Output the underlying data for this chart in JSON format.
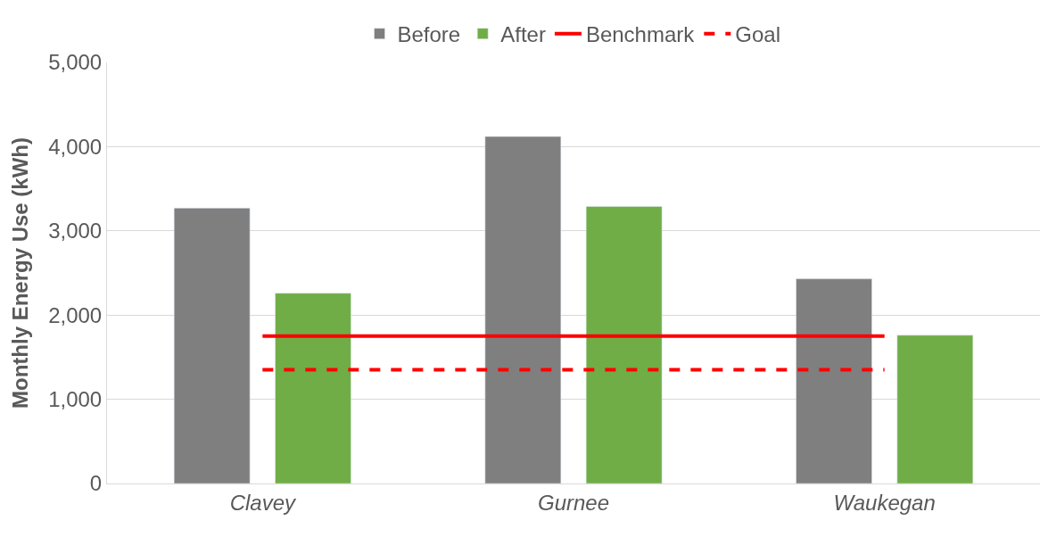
{
  "chart_data": {
    "type": "bar",
    "ylabel": "Monthly Energy Use (kWh)",
    "categories": [
      "Clavey",
      "Gurnee",
      "Waukegan"
    ],
    "series": [
      {
        "name": "Before",
        "color": "#7f7f7f",
        "values": [
          3270,
          4120,
          2430
        ]
      },
      {
        "name": "After",
        "color": "#70ad47",
        "values": [
          2260,
          3290,
          1760
        ]
      },
      {
        "name": "Benchmark",
        "type": "line",
        "color": "#ff0000",
        "line_style": "solid",
        "values": [
          1750,
          1750,
          1750
        ]
      },
      {
        "name": "Goal",
        "type": "line",
        "color": "#ff0000",
        "line_style": "dashed",
        "values": [
          1350,
          1350,
          1350
        ]
      }
    ],
    "ylim": [
      0,
      5000
    ],
    "yticks": [
      {
        "value": 0,
        "label": "0"
      },
      {
        "value": 1000,
        "label": "1,000"
      },
      {
        "value": 2000,
        "label": "2,000"
      },
      {
        "value": 3000,
        "label": "3,000"
      },
      {
        "value": 4000,
        "label": "4,000"
      },
      {
        "value": 5000,
        "label": "5,000"
      }
    ],
    "grid": "y",
    "legend": "top"
  }
}
